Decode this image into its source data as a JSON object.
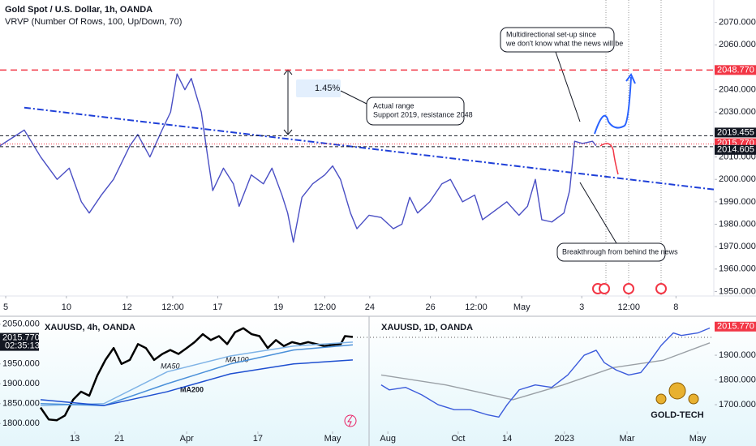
{
  "header": {
    "title": "Gold Spot / U.S. Dollar, 1h, OANDA",
    "indicator": "VRVP (Number Of Rows, 100, Up/Down, 70)",
    "logo": "GOLD-TECH"
  },
  "chart_data": [
    {
      "type": "line",
      "title": "Gold Spot / U.S. Dollar, 1h, OANDA",
      "xlim": [
        0,
        100
      ],
      "ylim": [
        1948,
        2080
      ],
      "xticks": [
        {
          "value": 0.8,
          "label": "5"
        },
        {
          "value": 9.3,
          "label": "10"
        },
        {
          "value": 17.8,
          "label": "12"
        },
        {
          "value": 24.2,
          "label": "12:00"
        },
        {
          "value": 30.5,
          "label": "17"
        },
        {
          "value": 39,
          "label": "19"
        },
        {
          "value": 45.5,
          "label": "12:00"
        },
        {
          "value": 51.8,
          "label": "24"
        },
        {
          "value": 60.3,
          "label": "26"
        },
        {
          "value": 66.7,
          "label": "12:00"
        },
        {
          "value": 73.1,
          "label": "May"
        },
        {
          "value": 81.5,
          "label": "3"
        },
        {
          "value": 88.1,
          "label": "12:00"
        },
        {
          "value": 94.7,
          "label": "8"
        }
      ],
      "yticks": [
        {
          "value": 1950,
          "label": "1950.000"
        },
        {
          "value": 1960,
          "label": "1960.000"
        },
        {
          "value": 1970,
          "label": "1970.000"
        },
        {
          "value": 1980,
          "label": "1980.000"
        },
        {
          "value": 1990,
          "label": "1990.000"
        },
        {
          "value": 2000,
          "label": "2000.000"
        },
        {
          "value": 2010,
          "label": "2010.000"
        },
        {
          "value": 2030,
          "label": "2030.000"
        },
        {
          "value": 2040,
          "label": "2040.000"
        },
        {
          "value": 2060,
          "label": "2060.000"
        },
        {
          "value": 2070,
          "label": "2070.000"
        }
      ],
      "series": [
        {
          "color": "#4a4fc4",
          "x": [
            0,
            3.4,
            5.7,
            8,
            9.7,
            11.4,
            12.5,
            14.2,
            15.9,
            18.2,
            19.3,
            21,
            22.7,
            23.9,
            24.8,
            25.9,
            26.8,
            28.2,
            29.1,
            29.8,
            31.3,
            32.7,
            33.5,
            35.2,
            36.9,
            38.1,
            39.5,
            40.3,
            41.1,
            42.3,
            43.8,
            45.5,
            46.6,
            47.7,
            49.1,
            50,
            51.7,
            53.4,
            55.1,
            56.3,
            57.4,
            58.5,
            60.2,
            61.9,
            63.1,
            64.8,
            66.5,
            67.6,
            69.3,
            71,
            72.7,
            73.9,
            75,
            75.9,
            77.3,
            79,
            79.8,
            80.5,
            81.6,
            83,
            83.5
          ],
          "values": [
            2015,
            2022,
            2010,
            2000,
            2005,
            1990,
            1985,
            1993,
            2000,
            2015,
            2020,
            2010,
            2022,
            2030,
            2047,
            2040,
            2045,
            2030,
            2010,
            1995,
            2005,
            1998,
            1988,
            2002,
            1998,
            2005,
            1993,
            1985,
            1972,
            1992,
            1998,
            2002,
            2006,
            2000,
            1985,
            1978,
            1984,
            1983,
            1978,
            1980,
            1992,
            1985,
            1990,
            1998,
            2000,
            1990,
            1993,
            1982,
            1986,
            1990,
            1984,
            1988,
            2000,
            1982,
            1981,
            1985,
            1995,
            2017,
            2016,
            2017,
            2015
          ]
        }
      ],
      "trendline": {
        "color": "#1e3fd8",
        "x": [
          3.4,
          100
        ],
        "values": [
          2032,
          1995.5
        ]
      },
      "price_lines": [
        {
          "value": 2048.77,
          "label": "2048.770",
          "color": "#f23645"
        },
        {
          "value": 2019.455,
          "label": "2019.455",
          "color": "#131722"
        },
        {
          "value": 2015.77,
          "label": "2015.770",
          "color": "#f23645"
        },
        {
          "value": 2014.605,
          "label": "2014.605",
          "color": "#131722"
        }
      ],
      "annotations": {
        "measure": "1.45%",
        "range": [
          "Actual range",
          "Support 2019, resistance 2048"
        ],
        "setup": [
          "Multidirectional set-up since",
          "we don't know what the news will be"
        ],
        "breakthrough": "Breakthrough from behind the news"
      }
    },
    {
      "type": "line",
      "title": "XAUUSD, 4h, OANDA",
      "xlim": [
        0,
        100
      ],
      "ylim": [
        1780,
        2066
      ],
      "xticks": [
        {
          "value": 10.8,
          "label": "13"
        },
        {
          "value": 24.9,
          "label": "21"
        },
        {
          "value": 46.2,
          "label": "Apr"
        },
        {
          "value": 68.7,
          "label": "17"
        },
        {
          "value": 92.3,
          "label": "May"
        }
      ],
      "yticks": [
        {
          "value": 1800,
          "label": "1800.000"
        },
        {
          "value": 1850,
          "label": "1850.000"
        },
        {
          "value": 1900,
          "label": "1900.000"
        },
        {
          "value": 1950,
          "label": "1950.000"
        },
        {
          "value": 2050,
          "label": "2050.000"
        }
      ],
      "price_label": {
        "value": 2015.77,
        "label": "2015.770",
        "countdown": "02:35:13"
      },
      "series": [
        {
          "color": "#000000",
          "x": [
            0,
            2.6,
            5.1,
            7.7,
            10.3,
            12.8,
            15.4,
            17.9,
            20.5,
            23.1,
            25.6,
            28.2,
            30.8,
            33.3,
            35.9,
            38.5,
            41,
            43.6,
            46.2,
            48.7,
            51.3,
            53.8,
            56.4,
            59,
            61.5,
            64.1,
            66.7,
            69.2,
            71.8,
            74.4,
            76.9,
            79.5,
            82.1,
            84.6,
            87.2,
            89.7,
            92.3,
            94.9,
            96.2,
            98.7
          ],
          "values": [
            1840,
            1810,
            1808,
            1820,
            1860,
            1880,
            1870,
            1920,
            1960,
            1990,
            1950,
            1960,
            2000,
            1990,
            1960,
            1975,
            1985,
            1975,
            1990,
            2005,
            2025,
            2010,
            2020,
            2000,
            2030,
            2040,
            2025,
            2020,
            1990,
            2010,
            1995,
            2005,
            2000,
            2005,
            2000,
            1995,
            1998,
            2000,
            2020,
            2018
          ]
        },
        {
          "name": "MA50",
          "color": "#7fb3e6",
          "x": [
            0,
            20,
            40,
            60,
            80,
            98.7
          ],
          "values": [
            1845,
            1850,
            1930,
            1970,
            1995,
            2005
          ]
        },
        {
          "name": "MA100",
          "color": "#4a90d9",
          "x": [
            0,
            20,
            40,
            60,
            80,
            98.7
          ],
          "values": [
            1850,
            1845,
            1900,
            1950,
            1985,
            1998
          ]
        },
        {
          "name": "MA200",
          "color": "#1e4fd0",
          "x": [
            0,
            20,
            40,
            60,
            80,
            98.7
          ],
          "values": [
            1860,
            1845,
            1880,
            1925,
            1950,
            1960
          ]
        }
      ]
    },
    {
      "type": "line",
      "title": "XAUUSD, 1D, OANDA",
      "xlim": [
        0,
        100
      ],
      "ylim": [
        1592,
        2051
      ],
      "xticks": [
        {
          "value": 2.7,
          "label": "Aug"
        },
        {
          "value": 23.7,
          "label": "Oct"
        },
        {
          "value": 38.3,
          "label": "14"
        },
        {
          "value": 55.4,
          "label": "2023"
        },
        {
          "value": 74.1,
          "label": "Mar"
        },
        {
          "value": 95.2,
          "label": "May"
        }
      ],
      "yticks": [
        {
          "value": 1700,
          "label": "1700.000"
        },
        {
          "value": 1800,
          "label": "1800.000"
        },
        {
          "value": 1900,
          "label": "1900.000"
        }
      ],
      "price_label": {
        "value": 2015.77,
        "label": "2015.770"
      },
      "series": [
        {
          "color": "#9aa0a6",
          "x": [
            0.7,
            20,
            40,
            55,
            70,
            85,
            98.8
          ],
          "values": [
            1820,
            1780,
            1720,
            1780,
            1850,
            1880,
            1950
          ]
        },
        {
          "color": "#3b5bdb",
          "x": [
            0.7,
            3.1,
            8,
            12.8,
            17.7,
            22.5,
            27.4,
            32.2,
            35.8,
            38.3,
            41.9,
            46.7,
            51.6,
            56.4,
            61.3,
            64.9,
            67.3,
            70.9,
            74.6,
            78.2,
            80.6,
            84.3,
            87.9,
            90.3,
            95.2,
            98.8
          ],
          "values": [
            1780,
            1760,
            1770,
            1740,
            1700,
            1680,
            1680,
            1660,
            1650,
            1700,
            1760,
            1780,
            1770,
            1820,
            1900,
            1920,
            1870,
            1840,
            1820,
            1830,
            1870,
            1940,
            1990,
            1980,
            1990,
            2010
          ]
        }
      ]
    }
  ]
}
